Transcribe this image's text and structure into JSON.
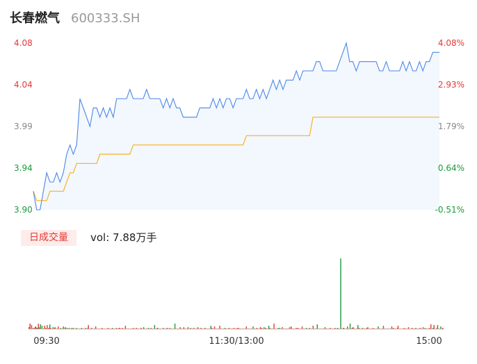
{
  "stock": {
    "name": "长春燃气",
    "code": "600333.SH"
  },
  "colors": {
    "price_line": "#4a86e8",
    "avg_line": "#f5b324",
    "up": "#e53935",
    "down": "#1a9a3c",
    "neutral": "#888888",
    "area": "#f3f7fe"
  },
  "volume": {
    "badge": "日成交量",
    "text": "vol: 7.88万手"
  },
  "chart_data": [
    {
      "type": "line",
      "title": "",
      "x_ticks": [
        "09:30",
        "11:30/13:00",
        "15:00"
      ],
      "y_ticks": [
        "4.08",
        "4.04",
        "3.99",
        "3.94",
        "3.90"
      ],
      "pct_ticks": [
        "4.08%",
        "2.93%",
        "1.79%",
        "0.64%",
        "-0.51%"
      ],
      "ylim": [
        3.9,
        4.08
      ],
      "series": [
        {
          "values": [
            3.92,
            3.9,
            3.9,
            3.92,
            3.94,
            3.93,
            3.93,
            3.94,
            3.93,
            3.94,
            3.96,
            3.97,
            3.96,
            3.97,
            4.02,
            4.01,
            4.0,
            3.99,
            4.01,
            4.01,
            4.0,
            4.01,
            4.0,
            4.01,
            4.0,
            4.02,
            4.02,
            4.02,
            4.02,
            4.03,
            4.02,
            4.02,
            4.02,
            4.02,
            4.03,
            4.02,
            4.02,
            4.02,
            4.02,
            4.01,
            4.02,
            4.01,
            4.02,
            4.01,
            4.01,
            4.0,
            4.0,
            4.0,
            4.0,
            4.0,
            4.01,
            4.01,
            4.01,
            4.01,
            4.02,
            4.01,
            4.02,
            4.01,
            4.02,
            4.02,
            4.01,
            4.02,
            4.02,
            4.02,
            4.03,
            4.02,
            4.02,
            4.03,
            4.02,
            4.03,
            4.02,
            4.03,
            4.04,
            4.03,
            4.04,
            4.03,
            4.04,
            4.04,
            4.04,
            4.05,
            4.04,
            4.05,
            4.05,
            4.05,
            4.05,
            4.06,
            4.06,
            4.05,
            4.05,
            4.05,
            4.05,
            4.05,
            4.06,
            4.07,
            4.08,
            4.06,
            4.06,
            4.05,
            4.06,
            4.06,
            4.06,
            4.06,
            4.06,
            4.06,
            4.05,
            4.05,
            4.06,
            4.05,
            4.05,
            4.05,
            4.05,
            4.06,
            4.05,
            4.06,
            4.05,
            4.05,
            4.06,
            4.05,
            4.06,
            4.06,
            4.07,
            4.07,
            4.07
          ]
        },
        {
          "values": [
            3.92,
            3.91,
            3.91,
            3.91,
            3.91,
            3.92,
            3.92,
            3.92,
            3.92,
            3.92,
            3.93,
            3.94,
            3.94,
            3.95,
            3.95,
            3.95,
            3.95,
            3.95,
            3.95,
            3.95,
            3.96,
            3.96,
            3.96,
            3.96,
            3.96,
            3.96,
            3.96,
            3.96,
            3.96,
            3.96,
            3.97,
            3.97,
            3.97,
            3.97,
            3.97,
            3.97,
            3.97,
            3.97,
            3.97,
            3.97,
            3.97,
            3.97,
            3.97,
            3.97,
            3.97,
            3.97,
            3.97,
            3.97,
            3.97,
            3.97,
            3.97,
            3.97,
            3.97,
            3.97,
            3.97,
            3.97,
            3.97,
            3.97,
            3.97,
            3.97,
            3.97,
            3.97,
            3.97,
            3.97,
            3.98,
            3.98,
            3.98,
            3.98,
            3.98,
            3.98,
            3.98,
            3.98,
            3.98,
            3.98,
            3.98,
            3.98,
            3.98,
            3.98,
            3.98,
            3.98,
            3.98,
            3.98,
            3.98,
            3.98,
            4.0,
            4.0,
            4.0,
            4.0,
            4.0,
            4.0,
            4.0,
            4.0,
            4.0,
            4.0,
            4.0,
            4.0,
            4.0,
            4.0,
            4.0,
            4.0,
            4.0,
            4.0,
            4.0,
            4.0,
            4.0,
            4.0,
            4.0,
            4.0,
            4.0,
            4.0,
            4.0,
            4.0,
            4.0,
            4.0,
            4.0,
            4.0,
            4.0,
            4.0,
            4.0,
            4.0,
            4.0,
            4.0,
            4.0
          ]
        }
      ]
    },
    {
      "type": "bar",
      "title": "",
      "values": [
        3,
        1,
        2,
        1,
        1,
        1,
        1,
        1,
        2,
        1,
        1,
        2,
        3,
        1,
        2,
        1,
        2,
        1,
        2,
        3,
        2,
        1,
        1,
        1,
        1,
        1,
        1,
        1,
        1,
        1,
        1,
        1,
        2,
        1,
        1,
        2,
        1,
        1,
        2,
        1,
        1,
        2,
        1,
        1,
        1,
        1,
        1,
        1,
        1,
        2,
        1,
        1,
        1,
        1,
        1,
        1,
        1,
        1,
        1,
        1,
        1,
        2,
        1,
        1,
        1,
        1,
        1,
        2,
        1,
        1,
        1,
        1,
        1,
        2,
        1,
        1,
        1,
        1,
        1,
        1,
        1,
        1,
        1,
        1,
        1,
        2,
        1,
        1,
        1,
        1,
        1,
        1,
        1,
        1,
        1,
        1,
        1,
        1,
        1,
        1,
        1,
        1,
        1,
        1,
        1,
        1,
        1,
        1,
        1,
        1,
        1,
        1,
        1,
        2,
        1,
        1,
        1,
        1,
        1,
        1,
        1,
        1,
        1,
        1,
        1,
        1,
        1,
        1,
        1,
        1,
        1,
        1,
        1,
        1,
        1,
        1,
        1,
        1,
        1,
        1,
        2,
        1,
        1,
        1,
        1,
        1,
        1,
        1,
        1,
        1,
        1,
        1,
        1,
        1,
        1,
        1,
        1,
        1,
        1,
        1,
        1,
        1,
        1,
        1,
        1,
        1,
        1,
        1,
        1,
        1,
        1,
        1,
        1,
        2,
        1,
        1,
        1,
        1,
        1,
        2,
        1,
        1,
        1,
        1,
        1,
        1,
        1,
        1,
        1,
        1,
        1,
        1,
        1,
        1,
        1,
        1,
        1,
        1,
        1,
        1,
        1,
        1,
        1,
        1,
        1,
        1,
        1,
        1,
        1,
        1,
        1,
        1,
        1,
        1,
        1,
        2,
        1,
        1,
        1,
        1,
        1,
        1,
        1,
        1,
        1,
        1,
        1,
        1,
        1,
        1,
        1,
        1,
        1,
        1,
        1,
        1,
        1,
        1,
        1,
        1,
        1,
        1,
        1,
        1,
        1,
        1,
        1,
        2,
        1,
        1,
        1,
        1,
        1,
        1,
        1,
        1,
        1,
        1,
        1,
        1,
        1,
        1,
        1,
        1,
        1,
        1,
        1,
        1,
        1,
        1,
        2,
        1,
        1,
        1,
        1,
        1,
        1,
        1,
        1,
        1,
        1,
        1,
        1,
        1,
        1,
        1,
        1,
        1,
        1,
        1,
        1,
        1,
        1,
        1,
        1,
        1,
        1,
        1,
        1,
        1,
        1,
        1,
        1,
        1,
        1,
        1,
        1,
        1,
        1,
        1,
        1,
        1,
        1,
        1,
        1,
        1,
        1,
        1,
        1,
        1,
        1,
        1,
        1,
        1,
        1,
        1,
        1,
        1,
        1,
        1,
        2,
        1,
        1,
        1,
        1,
        1,
        1,
        1,
        1,
        1,
        1,
        1,
        1,
        1,
        1,
        1,
        1,
        1,
        1,
        1,
        1,
        2,
        1,
        1,
        1,
        1,
        1,
        1,
        1,
        1,
        1,
        1,
        1,
        1,
        1,
        1,
        1,
        1,
        1,
        1,
        1,
        1,
        1,
        1,
        1,
        1,
        1,
        1,
        1,
        1,
        1,
        1,
        1,
        1,
        1,
        1,
        1,
        1,
        1,
        1,
        1,
        1,
        1,
        1,
        1,
        1,
        1,
        1,
        1,
        1,
        1,
        1,
        2,
        1,
        1,
        1,
        1,
        1,
        1,
        1,
        1,
        1,
        1,
        1,
        1,
        1,
        1,
        1,
        1,
        1,
        1,
        1,
        1,
        1,
        1,
        1,
        1,
        1,
        1,
        1,
        1,
        1,
        1,
        1,
        1,
        1,
        1,
        1,
        1,
        1,
        1,
        1,
        1,
        1,
        1,
        1,
        2,
        1,
        1,
        1,
        1,
        1,
        1,
        1,
        2,
        1,
        1,
        1,
        1,
        1,
        1,
        1,
        2,
        1,
        1,
        1,
        1,
        1,
        1,
        1,
        2,
        1,
        1,
        1,
        1,
        1,
        1,
        1,
        1,
        1,
        1,
        2,
        1,
        1,
        1,
        1,
        1,
        1,
        1,
        1,
        1,
        1,
        1,
        1,
        1,
        1,
        1,
        1,
        1,
        1,
        1,
        1,
        1,
        1,
        1,
        1,
        1,
        1,
        1,
        1,
        1,
        1,
        1,
        2,
        1,
        1,
        1,
        1,
        1,
        1,
        1,
        1,
        1,
        1,
        1,
        1,
        1,
        1,
        1,
        1,
        1,
        1,
        1,
        1,
        1,
        1,
        1,
        1,
        2,
        1,
        1,
        1,
        1,
        1,
        1,
        1,
        1,
        1,
        1,
        1,
        1,
        1,
        1,
        1,
        1,
        1,
        1,
        1,
        1,
        1,
        1,
        1,
        1,
        1,
        1,
        1,
        1,
        1,
        1,
        1,
        1,
        1,
        1,
        1,
        1,
        1,
        1,
        1,
        1,
        1,
        1,
        1,
        1,
        1,
        1,
        1,
        1,
        1,
        1,
        1,
        1,
        1,
        1,
        1,
        1,
        1,
        1,
        1,
        2,
        1,
        1,
        1,
        1,
        1,
        2,
        1,
        1,
        1,
        1,
        1,
        1,
        1,
        1,
        1,
        1,
        1,
        1,
        1,
        1,
        1,
        2,
        1,
        1,
        1,
        1,
        1,
        1,
        1,
        1,
        1,
        1,
        1,
        1,
        2,
        1,
        1,
        1,
        1,
        1,
        1,
        1,
        1,
        1,
        1,
        1,
        1,
        1,
        1,
        2,
        1,
        1,
        1,
        1,
        1,
        1,
        1,
        1,
        1,
        1,
        1,
        1,
        1,
        1,
        1,
        1,
        1,
        1,
        1,
        1,
        1,
        1,
        1,
        1,
        1,
        1,
        1,
        1,
        1,
        1,
        1,
        1,
        1,
        1,
        1,
        1,
        1,
        1,
        1,
        1,
        1,
        1,
        1,
        1,
        1,
        1,
        1,
        1,
        1,
        1,
        2,
        1,
        1,
        1,
        1,
        1,
        1,
        1,
        2,
        1,
        1,
        1,
        1,
        1,
        1,
        1,
        1,
        1,
        1,
        1,
        1,
        1,
        1,
        1,
        1,
        1,
        1,
        1,
        1,
        1,
        1,
        1,
        1,
        1,
        1,
        1,
        1,
        1,
        1,
        1,
        1,
        1,
        1,
        1,
        1,
        1,
        1,
        1,
        1,
        1,
        1,
        1,
        1,
        1,
        1,
        1,
        1,
        1,
        1,
        1,
        1,
        1,
        1,
        1,
        1,
        1,
        1,
        1,
        1,
        2,
        1,
        1,
        1,
        1,
        1,
        1,
        2,
        1,
        1,
        1,
        1,
        1,
        1,
        1,
        2,
        1,
        1,
        1,
        1,
        1,
        1,
        1,
        1,
        1,
        1,
        2
      ],
      "peaks": [
        [
          2,
          8
        ],
        [
          5,
          6
        ],
        [
          13,
          4
        ],
        [
          18,
          8
        ],
        [
          22,
          7
        ],
        [
          25,
          5
        ],
        [
          30,
          5
        ],
        [
          35,
          6
        ],
        [
          40,
          7
        ],
        [
          46,
          3
        ],
        [
          50,
          3
        ],
        [
          56,
          4
        ],
        [
          61,
          2
        ],
        [
          66,
          4
        ],
        [
          70,
          3
        ],
        [
          77,
          2
        ],
        [
          82,
          2
        ],
        [
          91,
          2
        ],
        [
          101,
          2
        ],
        [
          109,
          2
        ],
        [
          114,
          6
        ],
        [
          120,
          2
        ],
        [
          128,
          4
        ],
        [
          134,
          1
        ],
        [
          152,
          2
        ],
        [
          160,
          2
        ],
        [
          168,
          2
        ],
        [
          174,
          2
        ],
        [
          185,
          5
        ],
        [
          200,
          2
        ],
        [
          206,
          2
        ],
        [
          220,
          3
        ],
        [
          229,
          2
        ],
        [
          234,
          2
        ],
        [
          241,
          6
        ],
        [
          246,
          2
        ],
        [
          258,
          2
        ],
        [
          265,
          2
        ],
        [
          280,
          8
        ],
        [
          290,
          3
        ],
        [
          297,
          3
        ],
        [
          305,
          3
        ],
        [
          310,
          2
        ],
        [
          316,
          2
        ],
        [
          324,
          3
        ],
        [
          330,
          2
        ],
        [
          338,
          2
        ],
        [
          349,
          5
        ],
        [
          356,
          4
        ],
        [
          366,
          5
        ],
        [
          376,
          2
        ],
        [
          384,
          2
        ],
        [
          393,
          2
        ],
        [
          399,
          2
        ],
        [
          417,
          4
        ],
        [
          430,
          4
        ],
        [
          437,
          2
        ],
        [
          444,
          3
        ],
        [
          451,
          3
        ],
        [
          460,
          5
        ],
        [
          470,
          8
        ],
        [
          478,
          2
        ],
        [
          486,
          3
        ],
        [
          500,
          3
        ],
        [
          503,
          4
        ],
        [
          516,
          2
        ],
        [
          524,
          4
        ],
        [
          532,
          2
        ],
        [
          545,
          5
        ],
        [
          553,
          7
        ],
        [
          568,
          3
        ],
        [
          578,
          2
        ],
        [
          587,
          2
        ],
        [
          592,
          2
        ],
        [
          598,
          100
        ],
        [
          603,
          2
        ],
        [
          611,
          4
        ],
        [
          616,
          8
        ],
        [
          622,
          3
        ],
        [
          631,
          6
        ],
        [
          640,
          2
        ],
        [
          650,
          3
        ],
        [
          660,
          2
        ],
        [
          670,
          4
        ],
        [
          680,
          5
        ],
        [
          696,
          4
        ],
        [
          708,
          5
        ],
        [
          720,
          2
        ],
        [
          728,
          3
        ],
        [
          735,
          2
        ],
        [
          742,
          2
        ],
        [
          750,
          2
        ],
        [
          756,
          3
        ],
        [
          760,
          2
        ],
        [
          771,
          7
        ],
        [
          777,
          6
        ],
        [
          784,
          6
        ],
        [
          790,
          4
        ],
        [
          796,
          7
        ],
        [
          806,
          9
        ],
        [
          812,
          5
        ]
      ]
    }
  ]
}
